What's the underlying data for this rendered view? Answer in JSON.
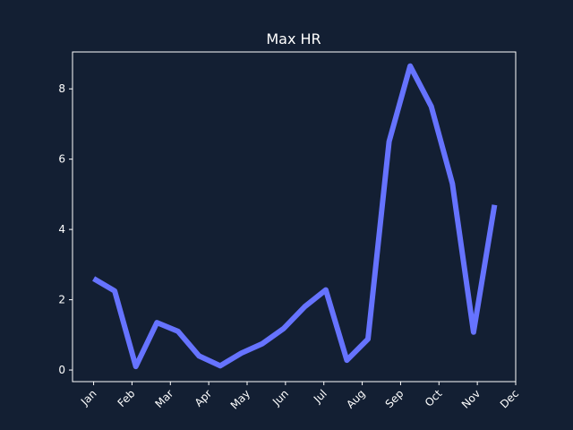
{
  "chart_data": {
    "type": "line",
    "title": "Max HR",
    "xlabel": "",
    "ylabel": "",
    "x_tick_labels": [
      "Jan",
      "Feb",
      "Mar",
      "Apr",
      "May",
      "Jun",
      "Jul",
      "Aug",
      "Sep",
      "Oct",
      "Nov",
      "Dec"
    ],
    "y_ticks": [
      0,
      2,
      4,
      6,
      8
    ],
    "ylim": [
      -0.33,
      9.05
    ],
    "xlim": [
      -0.55,
      11.0
    ],
    "grid": false,
    "colors": {
      "background": "#131f33",
      "axes": "#ffffff",
      "line": "#6673ff"
    },
    "series": [
      {
        "x": [
          0,
          0.55,
          1.1,
          1.65,
          2.2,
          2.75,
          3.3,
          3.85,
          4.4,
          4.95,
          5.5,
          6.05,
          6.6,
          7.15,
          7.7,
          8.25,
          8.8,
          9.35,
          9.9,
          10.45
        ],
        "values": [
          2.6,
          2.25,
          0.1,
          1.35,
          1.1,
          0.4,
          0.12,
          0.48,
          0.75,
          1.18,
          1.8,
          2.28,
          0.28,
          0.88,
          6.5,
          8.65,
          7.5,
          5.3,
          1.08,
          4.7
        ]
      }
    ]
  }
}
